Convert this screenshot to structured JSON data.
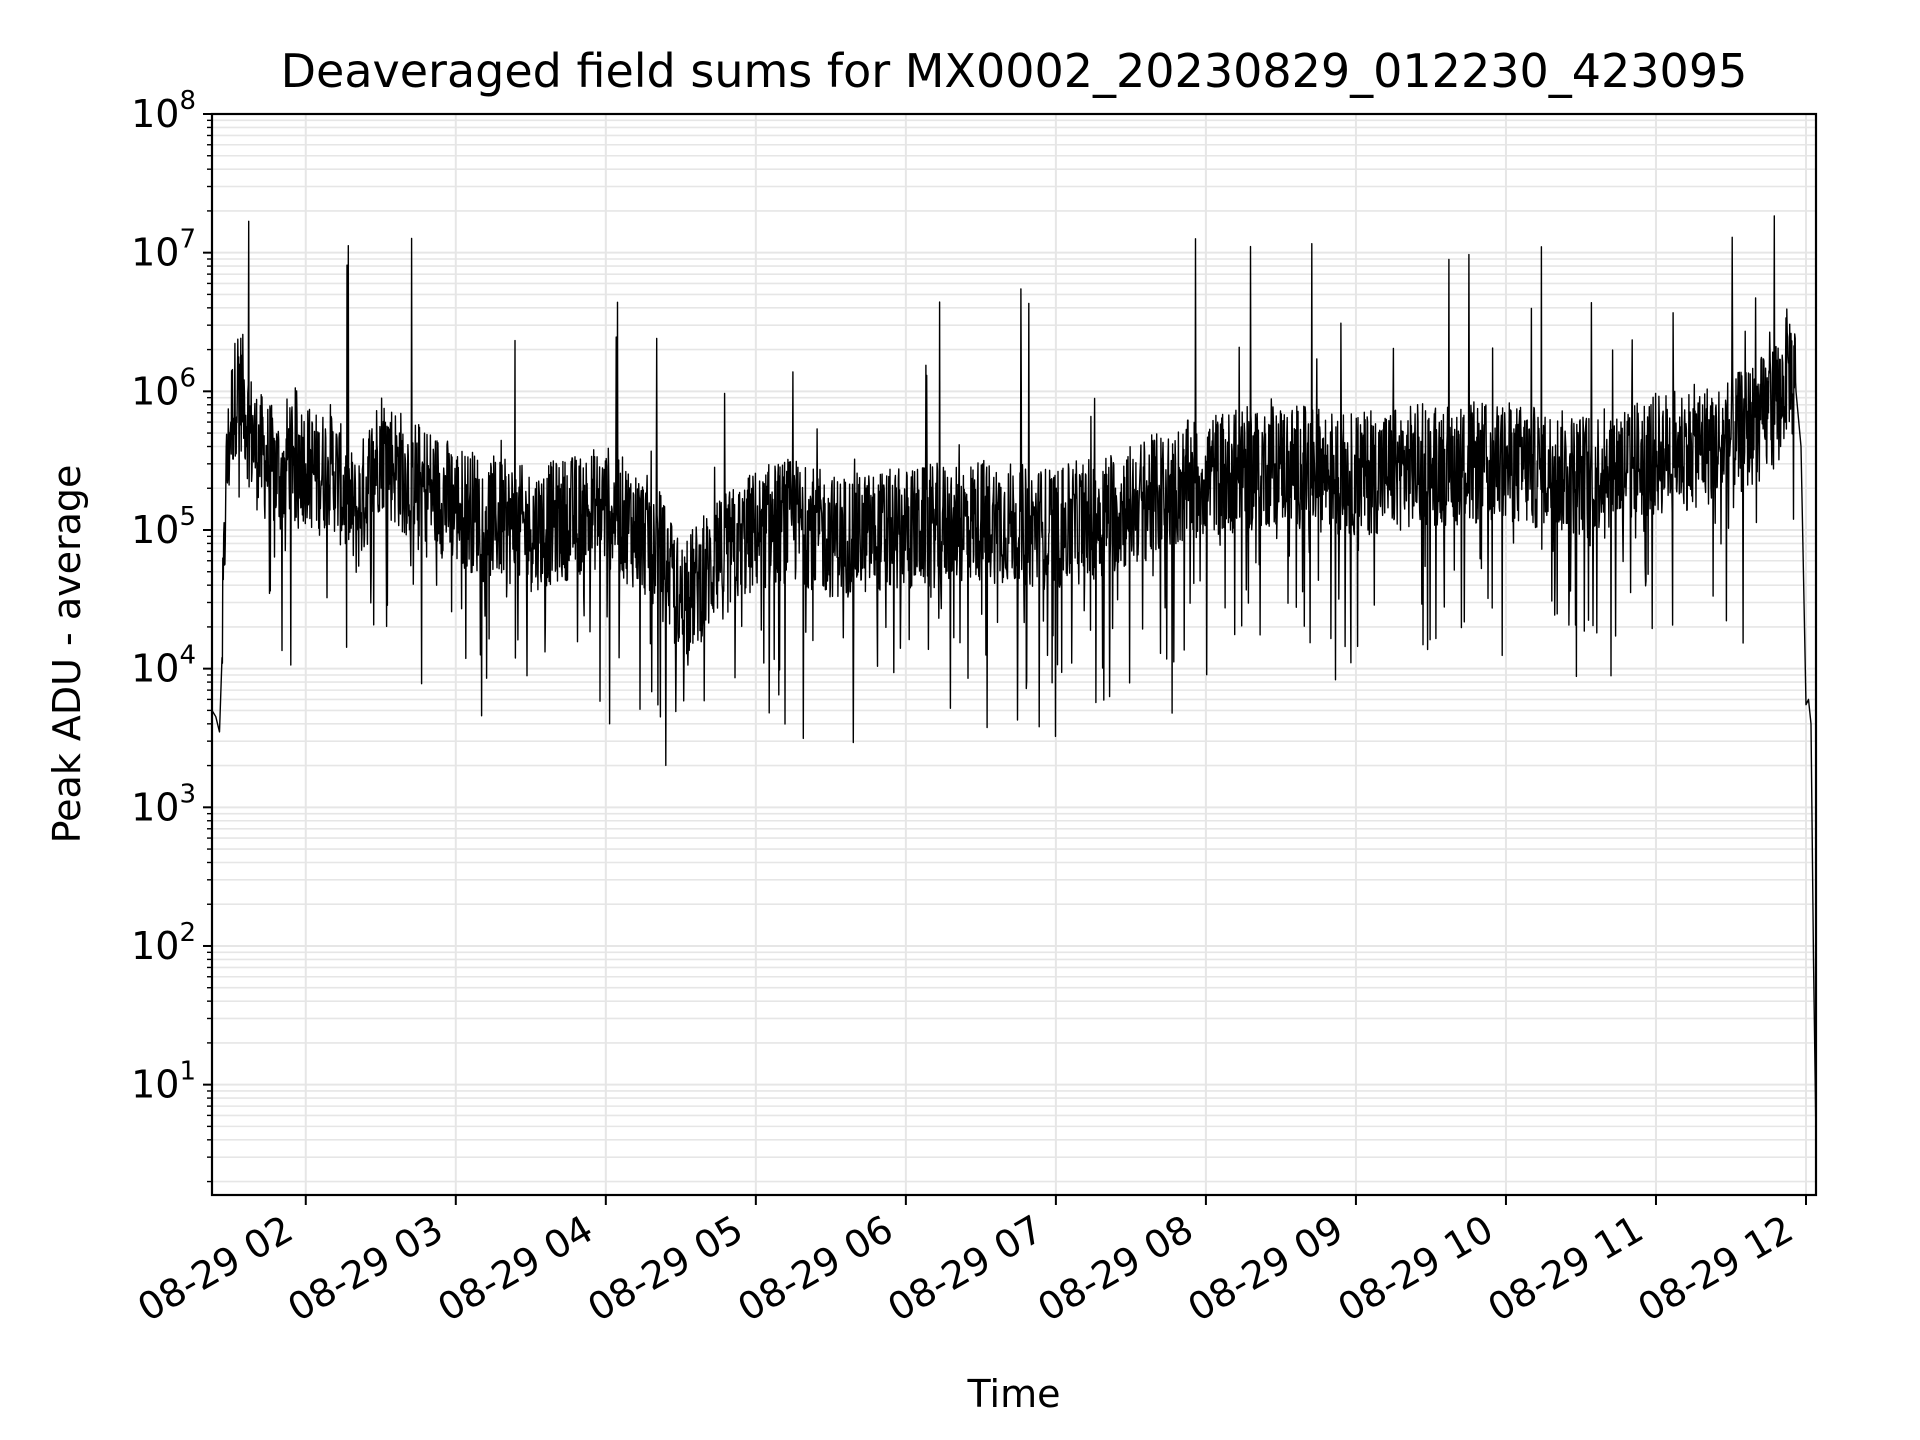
{
  "chart_data": {
    "type": "line",
    "title": "Deaveraged field sums for MX0002_20230829_012230_423095",
    "xlabel": "Time",
    "ylabel": "Peak ADU - average",
    "yscale": "log",
    "ylim": [
      1.6,
      100000000
    ],
    "xlim": [
      "2023-08-29 01:22:30",
      "2023-08-29 12:04:00"
    ],
    "grid": true,
    "x_ticks": [
      "08-29 02",
      "08-29 03",
      "08-29 04",
      "08-29 05",
      "08-29 06",
      "08-29 07",
      "08-29 08",
      "08-29 09",
      "08-29 10",
      "08-29 11",
      "08-29 12"
    ],
    "y_ticks": [
      {
        "base": "10",
        "exp": "1",
        "value": 10
      },
      {
        "base": "10",
        "exp": "2",
        "value": 100
      },
      {
        "base": "10",
        "exp": "3",
        "value": 1000
      },
      {
        "base": "10",
        "exp": "4",
        "value": 10000
      },
      {
        "base": "10",
        "exp": "5",
        "value": 100000
      },
      {
        "base": "10",
        "exp": "6",
        "value": 1000000
      },
      {
        "base": "10",
        "exp": "7",
        "value": 10000000
      },
      {
        "base": "10",
        "exp": "8",
        "value": 100000000
      }
    ],
    "line_color": "#000000",
    "grid_color": "#e6e6e6",
    "series": [
      {
        "x": [
          "2023-08-29 01:22:30",
          "2023-08-29 01:24:00",
          "2023-08-29 01:25:30",
          "2023-08-29 01:26:30",
          "2023-08-29 01:28:00",
          "2023-08-29 01:30:00",
          "2023-08-29 01:33:00",
          "2023-08-29 01:35:00",
          "2023-08-29 01:38:00",
          "2023-08-29 01:40:00",
          "2023-08-29 01:42:00",
          "2023-08-29 01:45:00",
          "2023-08-29 01:50:00",
          "2023-08-29 01:53:00",
          "2023-08-29 01:55:00",
          "2023-08-29 02:00:00",
          "2023-08-29 02:05:00",
          "2023-08-29 02:10:00",
          "2023-08-29 02:20:00",
          "2023-08-29 02:30:00",
          "2023-08-29 02:35:00",
          "2023-08-29 02:40:00",
          "2023-08-29 02:50:00",
          "2023-08-29 03:00:00",
          "2023-08-29 03:30:00",
          "2023-08-29 04:00:00",
          "2023-08-29 04:20:00",
          "2023-08-29 04:30:00",
          "2023-08-29 04:45:00",
          "2023-08-29 05:00:00",
          "2023-08-29 05:15:00",
          "2023-08-29 05:30:00",
          "2023-08-29 06:00:00",
          "2023-08-29 06:30:00",
          "2023-08-29 07:00:00",
          "2023-08-29 07:30:00",
          "2023-08-29 08:00:00",
          "2023-08-29 08:30:00",
          "2023-08-29 09:00:00",
          "2023-08-29 09:30:00",
          "2023-08-29 10:00:00",
          "2023-08-29 10:30:00",
          "2023-08-29 11:00:00",
          "2023-08-29 11:30:00",
          "2023-08-29 11:45:00",
          "2023-08-29 11:50:00",
          "2023-08-29 11:53:00",
          "2023-08-29 11:56:00",
          "2023-08-29 11:58:00",
          "2023-08-29 12:00:00",
          "2023-08-29 12:01:00",
          "2023-08-29 12:02:00",
          "2023-08-29 12:03:00",
          "2023-08-29 12:04:00"
        ],
        "values": [
          5000,
          4500,
          3500,
          12000,
          200000,
          600000,
          1200000,
          900000,
          500000,
          400000,
          350000,
          300000,
          250000,
          350000,
          400000,
          300000,
          250000,
          300000,
          120000,
          400000,
          300000,
          250000,
          200000,
          150000,
          100000,
          150000,
          80000,
          30000,
          60000,
          100000,
          120000,
          90000,
          100000,
          120000,
          100000,
          150000,
          250000,
          300000,
          250000,
          300000,
          300000,
          250000,
          350000,
          450000,
          700000,
          900000,
          1600000,
          1000000,
          400000,
          5500,
          6000,
          4000,
          80,
          4
        ]
      }
    ]
  }
}
